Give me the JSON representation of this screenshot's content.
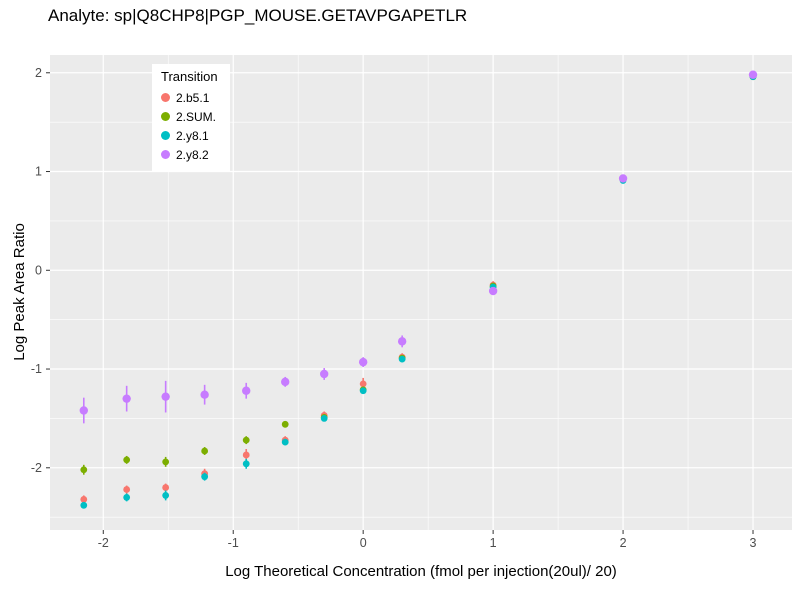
{
  "chart_data": {
    "type": "scatter",
    "title": "Analyte: sp|Q8CHP8|PGP_MOUSE.GETAVPGAPETLR",
    "xlabel": "Log Theoretical Concentration (fmol per injection(20ul)/ 20)",
    "ylabel": "Log Peak Area Ratio",
    "xlim": [
      -2.41,
      3.3
    ],
    "ylim": [
      -2.63,
      2.18
    ],
    "x_ticks": [
      -2,
      -1,
      0,
      1,
      2,
      3
    ],
    "y_ticks": [
      -2,
      -1,
      0,
      1,
      2
    ],
    "grid": true,
    "panel_bg": "#EBEBEB",
    "grid_color": "#FFFFFF",
    "tick_color": "#333333",
    "tick_label_color": "#4D4D4D",
    "legend": {
      "title": "Transition",
      "position": "inside-top-left"
    },
    "series": [
      {
        "name": "2.b5.1",
        "color": "#F8766D",
        "point_radius": 3.4,
        "points": [
          [
            -2.15,
            -2.32,
            0.04
          ],
          [
            -1.82,
            -2.22,
            0.04
          ],
          [
            -1.52,
            -2.2,
            0.04
          ],
          [
            -1.22,
            -2.06,
            0.05
          ],
          [
            -0.9,
            -1.87,
            0.06
          ],
          [
            -0.6,
            -1.72,
            0.04
          ],
          [
            -0.3,
            -1.47,
            0.04
          ],
          [
            0,
            -1.15,
            0.06
          ],
          [
            0.3,
            -0.88,
            0.04
          ],
          [
            1,
            -0.15,
            0.04
          ],
          [
            2,
            0.92,
            0.02
          ],
          [
            3,
            1.97,
            0.02
          ]
        ]
      },
      {
        "name": "2.SUM.",
        "color": "#7CAE00",
        "point_radius": 3.4,
        "points": [
          [
            -2.15,
            -2.02,
            0.05
          ],
          [
            -1.82,
            -1.92,
            0.04
          ],
          [
            -1.52,
            -1.94,
            0.05
          ],
          [
            -1.22,
            -1.83,
            0.04
          ],
          [
            -0.9,
            -1.72,
            0.04
          ],
          [
            -0.6,
            -1.56,
            0.03
          ],
          [
            -0.3,
            -1.49,
            0.03
          ],
          [
            0,
            -1.21,
            0.03
          ],
          [
            0.3,
            -0.89,
            0.03
          ],
          [
            1,
            -0.16,
            0.03
          ],
          [
            2,
            0.92,
            0.02
          ],
          [
            3,
            1.96,
            0.02
          ]
        ]
      },
      {
        "name": "2.y8.1",
        "color": "#00BFC4",
        "point_radius": 3.4,
        "points": [
          [
            -2.15,
            -2.38,
            0.03
          ],
          [
            -1.82,
            -2.3,
            0.04
          ],
          [
            -1.52,
            -2.28,
            0.05
          ],
          [
            -1.22,
            -2.09,
            0.04
          ],
          [
            -0.9,
            -1.96,
            0.05
          ],
          [
            -0.6,
            -1.74,
            0.03
          ],
          [
            -0.3,
            -1.5,
            0.03
          ],
          [
            0,
            -1.22,
            0.03
          ],
          [
            0.3,
            -0.9,
            0.03
          ],
          [
            1,
            -0.17,
            0.03
          ],
          [
            2,
            0.91,
            0.02
          ],
          [
            3,
            1.96,
            0.02
          ]
        ]
      },
      {
        "name": "2.y8.2",
        "color": "#C77CFF",
        "point_radius": 4.2,
        "points": [
          [
            -2.15,
            -1.42,
            0.13
          ],
          [
            -1.82,
            -1.3,
            0.13
          ],
          [
            -1.52,
            -1.28,
            0.16
          ],
          [
            -1.22,
            -1.26,
            0.1
          ],
          [
            -0.9,
            -1.22,
            0.08
          ],
          [
            -0.6,
            -1.13,
            0.05
          ],
          [
            -0.3,
            -1.05,
            0.06
          ],
          [
            0,
            -0.93,
            0.05
          ],
          [
            0.3,
            -0.72,
            0.06
          ],
          [
            1,
            -0.21,
            0.03
          ],
          [
            2,
            0.93,
            0.02
          ],
          [
            3,
            1.98,
            0.02
          ]
        ]
      }
    ]
  }
}
